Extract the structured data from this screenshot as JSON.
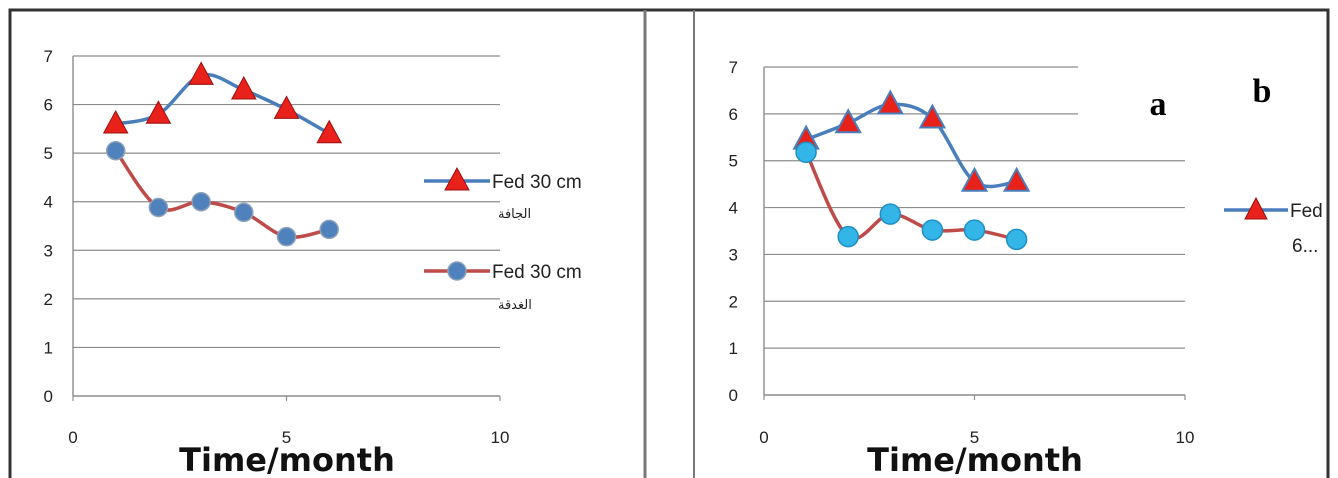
{
  "chart_data": [
    {
      "type": "line",
      "x": [
        1,
        2,
        3,
        4,
        5,
        6
      ],
      "series": [
        {
          "name": "Fed 30 cm",
          "sub": "الجافة",
          "marker": "triangle",
          "color": "#4a7ebb",
          "values": [
            5.6,
            5.8,
            6.6,
            6.3,
            5.9,
            5.4
          ]
        },
        {
          "name": "Fed 30 cm",
          "sub": "الغدقة",
          "marker": "circle",
          "color": "#be4b48",
          "values": [
            5.05,
            3.88,
            4.0,
            3.78,
            3.28,
            3.43
          ]
        }
      ],
      "xlabel": "Time/month",
      "xlim": [
        0,
        10
      ],
      "ylim": [
        0,
        7
      ],
      "xticks": [
        "0",
        "5",
        "10"
      ],
      "yticks": [
        "0",
        "1",
        "2",
        "3",
        "4",
        "5",
        "6",
        "7"
      ],
      "grid": "horizontal",
      "legend": "right"
    },
    {
      "type": "line",
      "x": [
        1,
        2,
        3,
        4,
        5,
        6
      ],
      "series": [
        {
          "name": "Fed",
          "sub": "6...",
          "marker": "triangle",
          "color": "#4a7ebb",
          "values": [
            5.45,
            5.8,
            6.2,
            5.9,
            4.55,
            4.55
          ]
        },
        {
          "marker": "circle",
          "color": "#be4b48",
          "values": [
            5.18,
            3.38,
            3.86,
            3.52,
            3.52,
            3.32
          ]
        }
      ],
      "xlabel": "Time/month",
      "xlim": [
        0,
        10
      ],
      "ylim": [
        0,
        7
      ],
      "xticks": [
        "0",
        "5",
        "10"
      ],
      "yticks": [
        "0",
        "1",
        "2",
        "3",
        "4",
        "5",
        "6",
        "7"
      ],
      "grid": "horizontal",
      "legend": "right",
      "panel_labels": [
        "a",
        "b"
      ]
    }
  ]
}
